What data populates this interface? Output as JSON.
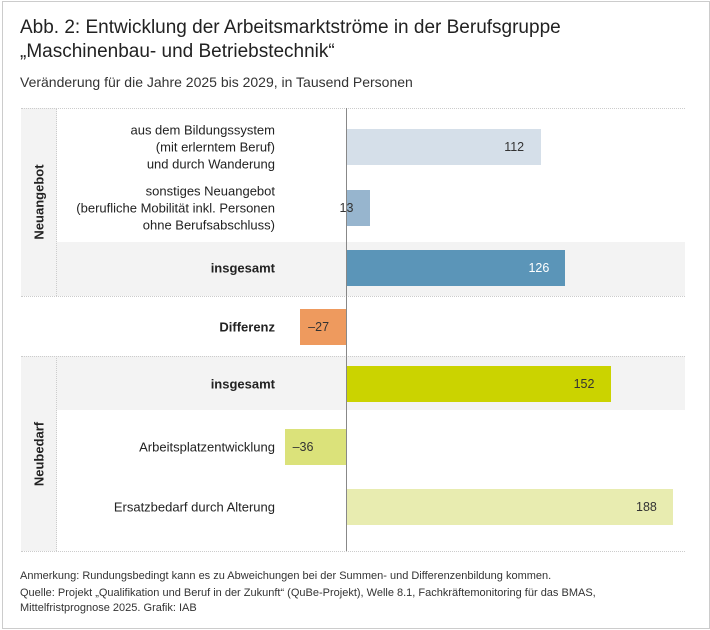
{
  "title": "Abb. 2: Entwicklung der Arbeitsmarktströme in der Berufsgruppe „Maschinenbau- und Betriebstechnik“",
  "subtitle": "Veränderung für die Jahre 2025 bis 2029, in Tausend Personen",
  "chart_data": {
    "type": "bar",
    "orientation": "horizontal",
    "groups": [
      "Neuangebot",
      "Neubedarf"
    ],
    "categories": [
      "aus dem Bildungssystem\n(mit erlerntem Beruf)\nund durch Wanderung",
      "sonstiges Neuangebot\n(berufliche Mobilität inkl. Personen\nohne Berufsabschluss)",
      "insgesamt",
      "Differenz",
      "insgesamt",
      "Arbeitsplatzentwicklung",
      "Ersatzbedarf durch Alterung"
    ],
    "values": [
      112,
      13,
      126,
      -27,
      152,
      -36,
      188
    ],
    "value_labels": [
      "112",
      "13",
      "126",
      "–27",
      "152",
      "–36",
      "188"
    ],
    "colors": [
      "#d5dfe9",
      "#97b5ce",
      "#5b95b8",
      "#ee9a5e",
      "#cbd300",
      "#dbe27a",
      "#e8ecb0"
    ],
    "xlim": [
      -45,
      195
    ]
  },
  "notes": {
    "anmerkung": "Anmerkung: Rundungsbedingt kann es zu Abweichungen bei der Summen- und Differenzenbildung kommen.",
    "quelle": "Quelle: Projekt „Qualifikation und Beruf in der Zukunft“ (QuBe-Projekt), Welle 8.1, Fachkräftemonitoring für das BMAS, Mittelfristprognose 2025. Grafik: IAB"
  }
}
